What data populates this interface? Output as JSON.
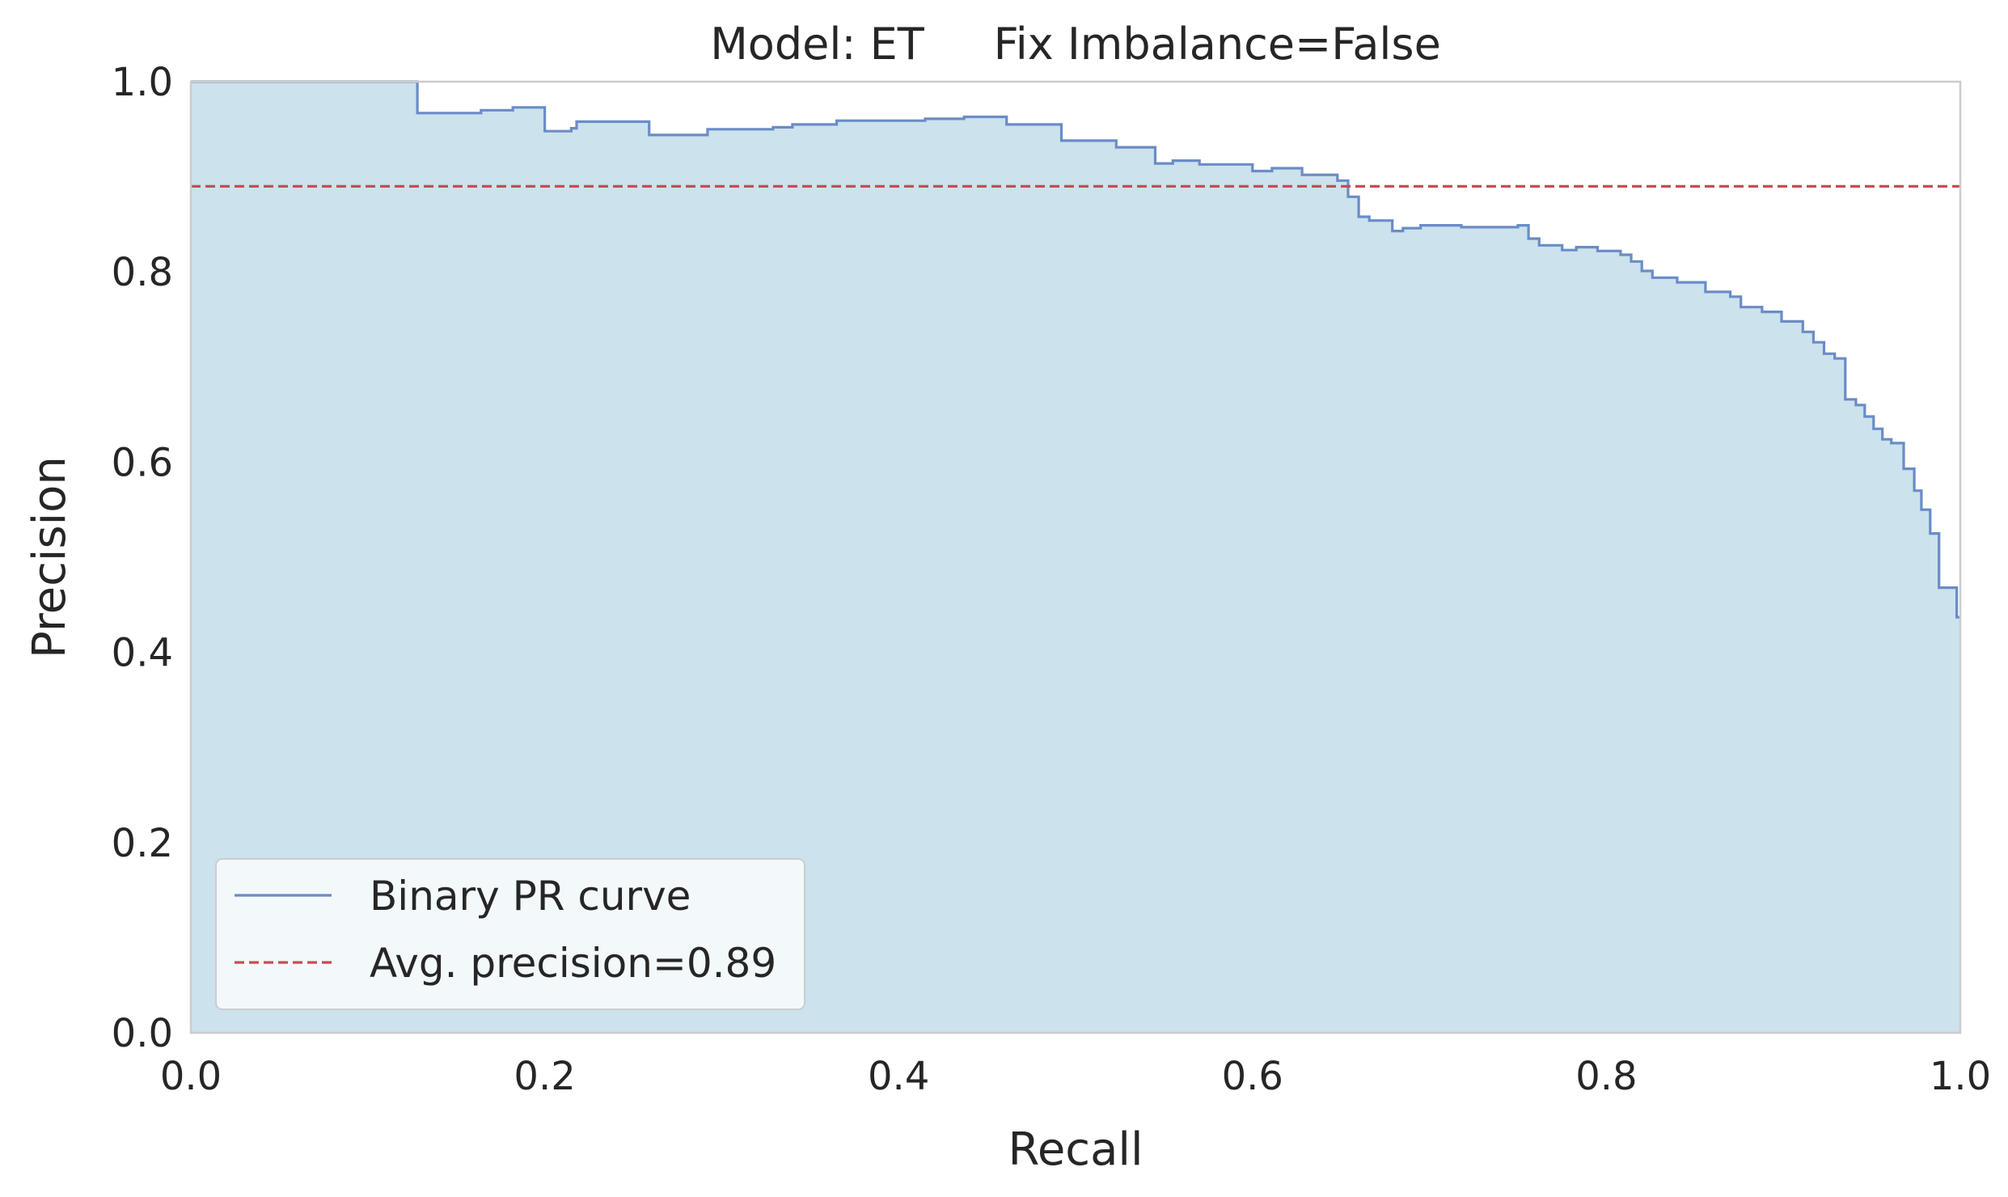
{
  "chart_data": {
    "type": "line",
    "title": "Model: ET     Fix Imbalance=False",
    "xlabel": "Recall",
    "ylabel": "Precision",
    "xlim": [
      0.0,
      1.0
    ],
    "ylim": [
      0.0,
      1.0
    ],
    "xticks": [
      "0.0",
      "0.2",
      "0.4",
      "0.6",
      "0.8",
      "1.0"
    ],
    "yticks": [
      "0.0",
      "0.2",
      "0.4",
      "0.6",
      "0.8",
      "1.0"
    ],
    "grid": false,
    "legend_position": "lower-left",
    "series": [
      {
        "name": "Binary PR curve",
        "style": "step",
        "color": "#6a8cc7",
        "fill_color": "#cce2ec",
        "points": [
          [
            0.0,
            1.0
          ],
          [
            0.128,
            1.0
          ],
          [
            0.128,
            0.967
          ],
          [
            0.164,
            0.967
          ],
          [
            0.164,
            0.97
          ],
          [
            0.182,
            0.97
          ],
          [
            0.182,
            0.973
          ],
          [
            0.2,
            0.973
          ],
          [
            0.2,
            0.948
          ],
          [
            0.215,
            0.948
          ],
          [
            0.215,
            0.951
          ],
          [
            0.218,
            0.951
          ],
          [
            0.218,
            0.958
          ],
          [
            0.259,
            0.958
          ],
          [
            0.259,
            0.944
          ],
          [
            0.292,
            0.944
          ],
          [
            0.292,
            0.95
          ],
          [
            0.329,
            0.95
          ],
          [
            0.329,
            0.952
          ],
          [
            0.34,
            0.952
          ],
          [
            0.34,
            0.955
          ],
          [
            0.365,
            0.955
          ],
          [
            0.365,
            0.959
          ],
          [
            0.415,
            0.959
          ],
          [
            0.415,
            0.961
          ],
          [
            0.437,
            0.961
          ],
          [
            0.437,
            0.963
          ],
          [
            0.461,
            0.963
          ],
          [
            0.461,
            0.955
          ],
          [
            0.492,
            0.955
          ],
          [
            0.492,
            0.938
          ],
          [
            0.523,
            0.938
          ],
          [
            0.523,
            0.931
          ],
          [
            0.545,
            0.931
          ],
          [
            0.545,
            0.914
          ],
          [
            0.555,
            0.914
          ],
          [
            0.555,
            0.917
          ],
          [
            0.57,
            0.917
          ],
          [
            0.57,
            0.913
          ],
          [
            0.6,
            0.913
          ],
          [
            0.6,
            0.906
          ],
          [
            0.611,
            0.906
          ],
          [
            0.611,
            0.909
          ],
          [
            0.628,
            0.909
          ],
          [
            0.628,
            0.902
          ],
          [
            0.648,
            0.902
          ],
          [
            0.648,
            0.896
          ],
          [
            0.654,
            0.896
          ],
          [
            0.654,
            0.879
          ],
          [
            0.66,
            0.879
          ],
          [
            0.66,
            0.858
          ],
          [
            0.666,
            0.858
          ],
          [
            0.666,
            0.854
          ],
          [
            0.679,
            0.854
          ],
          [
            0.679,
            0.843
          ],
          [
            0.685,
            0.843
          ],
          [
            0.685,
            0.846
          ],
          [
            0.695,
            0.846
          ],
          [
            0.695,
            0.849
          ],
          [
            0.718,
            0.849
          ],
          [
            0.718,
            0.847
          ],
          [
            0.75,
            0.847
          ],
          [
            0.75,
            0.849
          ],
          [
            0.756,
            0.849
          ],
          [
            0.756,
            0.835
          ],
          [
            0.762,
            0.835
          ],
          [
            0.762,
            0.828
          ],
          [
            0.775,
            0.828
          ],
          [
            0.775,
            0.823
          ],
          [
            0.783,
            0.823
          ],
          [
            0.783,
            0.826
          ],
          [
            0.795,
            0.826
          ],
          [
            0.795,
            0.822
          ],
          [
            0.808,
            0.822
          ],
          [
            0.808,
            0.818
          ],
          [
            0.814,
            0.818
          ],
          [
            0.814,
            0.811
          ],
          [
            0.82,
            0.811
          ],
          [
            0.82,
            0.801
          ],
          [
            0.826,
            0.801
          ],
          [
            0.826,
            0.794
          ],
          [
            0.84,
            0.794
          ],
          [
            0.84,
            0.789
          ],
          [
            0.856,
            0.789
          ],
          [
            0.856,
            0.779
          ],
          [
            0.87,
            0.779
          ],
          [
            0.87,
            0.774
          ],
          [
            0.876,
            0.774
          ],
          [
            0.876,
            0.763
          ],
          [
            0.888,
            0.763
          ],
          [
            0.888,
            0.758
          ],
          [
            0.899,
            0.758
          ],
          [
            0.899,
            0.748
          ],
          [
            0.911,
            0.748
          ],
          [
            0.911,
            0.737
          ],
          [
            0.917,
            0.737
          ],
          [
            0.917,
            0.726
          ],
          [
            0.923,
            0.726
          ],
          [
            0.923,
            0.714
          ],
          [
            0.929,
            0.714
          ],
          [
            0.929,
            0.709
          ],
          [
            0.935,
            0.709
          ],
          [
            0.935,
            0.666
          ],
          [
            0.941,
            0.666
          ],
          [
            0.941,
            0.66
          ],
          [
            0.946,
            0.66
          ],
          [
            0.946,
            0.648
          ],
          [
            0.951,
            0.648
          ],
          [
            0.951,
            0.635
          ],
          [
            0.956,
            0.635
          ],
          [
            0.956,
            0.624
          ],
          [
            0.961,
            0.624
          ],
          [
            0.961,
            0.62
          ],
          [
            0.968,
            0.62
          ],
          [
            0.968,
            0.593
          ],
          [
            0.974,
            0.593
          ],
          [
            0.974,
            0.57
          ],
          [
            0.978,
            0.57
          ],
          [
            0.978,
            0.55
          ],
          [
            0.983,
            0.55
          ],
          [
            0.983,
            0.525
          ],
          [
            0.988,
            0.525
          ],
          [
            0.988,
            0.468
          ],
          [
            0.998,
            0.468
          ],
          [
            0.998,
            0.437
          ],
          [
            1.0,
            0.437
          ]
        ]
      },
      {
        "name": "Avg. precision=0.89",
        "style": "dashed",
        "color": "#c44e52",
        "y": 0.89
      }
    ]
  }
}
